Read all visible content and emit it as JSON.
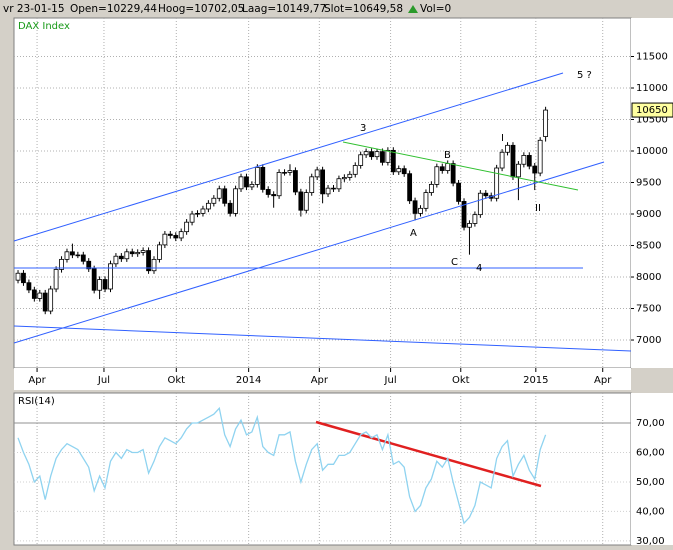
{
  "header": [
    "vr 23-01-15",
    "Open=10229,44",
    "Hoog=10702,05",
    "Laag=10149,77",
    "Slot=10649,58",
    "Vol=0"
  ],
  "chart_data": [
    {
      "type": "candlestick",
      "title": "DAX Index",
      "open": [
        7950,
        8060,
        7910,
        7795,
        7660,
        7745,
        7460,
        7810,
        8120,
        8280,
        8400,
        8350,
        8350,
        8250,
        8130,
        7790,
        7960,
        7810,
        8210,
        8330,
        8290,
        8400,
        8370,
        8390,
        8420,
        8100,
        8280,
        8510,
        8680,
        8660,
        8620,
        8720,
        8870,
        9000,
        9010,
        9080,
        9170,
        9250,
        9400,
        9170,
        9010,
        9400,
        9590,
        9430,
        9470,
        9740,
        9390,
        9310,
        9290,
        9660,
        9660,
        9690,
        9350,
        9060,
        9340,
        9590,
        9700,
        9320,
        9410,
        9400,
        9560,
        9580,
        9630,
        9770,
        9940,
        9990,
        9910,
        9990,
        9820,
        10010,
        9670,
        9720,
        9640,
        9210,
        9010,
        9090,
        9340,
        9470,
        9750,
        9690,
        9800,
        9490,
        9200,
        8790,
        8850,
        8990,
        9330,
        9290,
        9250,
        9730,
        9980,
        10090,
        9590,
        9790,
        9930,
        9760,
        9650,
        10229.44
      ],
      "high": [
        8110,
        8110,
        7960,
        7845,
        7795,
        7795,
        7860,
        8170,
        8330,
        8450,
        8530,
        8400,
        8400,
        8300,
        8180,
        8010,
        8010,
        8260,
        8380,
        8380,
        8450,
        8450,
        8440,
        8470,
        8470,
        8330,
        8560,
        8730,
        8730,
        8710,
        8770,
        8920,
        9050,
        9060,
        9130,
        9220,
        9300,
        9450,
        9450,
        9220,
        9450,
        9640,
        9640,
        9520,
        9790,
        9790,
        9440,
        9360,
        9710,
        9710,
        9790,
        9740,
        9400,
        9390,
        9640,
        9750,
        9750,
        9460,
        9460,
        9610,
        9630,
        9680,
        9820,
        9990,
        10040,
        10040,
        10040,
        10040,
        10060,
        10060,
        9770,
        9770,
        9690,
        9260,
        9140,
        9390,
        9520,
        9800,
        9800,
        9850,
        9850,
        9540,
        9250,
        8900,
        9040,
        9380,
        9380,
        9340,
        9780,
        10030,
        10140,
        10140,
        9840,
        9980,
        9980,
        9810,
        10220,
        10702.05
      ],
      "low": [
        7900,
        7860,
        7745,
        7610,
        7610,
        7410,
        7410,
        7760,
        8070,
        8230,
        8300,
        8300,
        8200,
        8080,
        7740,
        7650,
        7760,
        7760,
        8160,
        8240,
        8240,
        8320,
        8320,
        8340,
        8050,
        8050,
        8230,
        8460,
        8610,
        8570,
        8570,
        8670,
        8820,
        8950,
        8960,
        9030,
        9120,
        9200,
        9120,
        8960,
        8960,
        9350,
        9380,
        9380,
        9420,
        9340,
        9260,
        9100,
        9240,
        9610,
        9610,
        9300,
        8960,
        9010,
        9290,
        9540,
        9170,
        9270,
        9350,
        9350,
        9510,
        9530,
        9580,
        9720,
        9890,
        9860,
        9860,
        9770,
        9770,
        9620,
        9620,
        9590,
        9160,
        8900,
        8960,
        9040,
        9290,
        9420,
        9640,
        9640,
        9440,
        9150,
        8740,
        8355,
        8800,
        8940,
        9240,
        9200,
        9200,
        9680,
        9930,
        9540,
        9220,
        9740,
        9710,
        9380,
        9600,
        10149.77
      ],
      "close": [
        8060,
        7910,
        7795,
        7660,
        7745,
        7460,
        7810,
        8120,
        8280,
        8400,
        8350,
        8350,
        8250,
        8130,
        7790,
        7960,
        7810,
        8210,
        8330,
        8290,
        8400,
        8370,
        8390,
        8420,
        8100,
        8280,
        8510,
        8680,
        8660,
        8620,
        8720,
        8870,
        9000,
        9010,
        9080,
        9170,
        9250,
        9400,
        9170,
        9010,
        9400,
        9590,
        9430,
        9470,
        9740,
        9390,
        9310,
        9290,
        9660,
        9660,
        9690,
        9350,
        9060,
        9340,
        9590,
        9700,
        9320,
        9410,
        9400,
        9560,
        9580,
        9630,
        9770,
        9940,
        9990,
        9910,
        9990,
        9820,
        10010,
        9670,
        9720,
        9640,
        9210,
        9010,
        9090,
        9340,
        9470,
        9750,
        9690,
        9800,
        9490,
        9200,
        8790,
        8850,
        8990,
        9330,
        9290,
        9250,
        9730,
        9980,
        10090,
        9590,
        9790,
        9930,
        9760,
        9650,
        10170,
        10649.58
      ],
      "xlim": [
        -0.74,
        112.7
      ],
      "xticks": [
        {
          "value": 3.5,
          "label": "Apr"
        },
        {
          "value": 15.8,
          "label": "Jul"
        },
        {
          "value": 29.1,
          "label": "Okt"
        },
        {
          "value": 42.4,
          "label": "2014"
        },
        {
          "value": 55.4,
          "label": "Apr"
        },
        {
          "value": 68.5,
          "label": "Jul"
        },
        {
          "value": 81.4,
          "label": "Okt"
        },
        {
          "value": 95.2,
          "label": "2015"
        },
        {
          "value": 107.5,
          "label": "Apr"
        }
      ],
      "ylim": [
        6556,
        12111
      ],
      "yticks": [
        7000,
        7500,
        8000,
        8500,
        9000,
        9500,
        10000,
        10500,
        11000,
        11500
      ],
      "last_price_tag": 10650,
      "annotations": [
        "3",
        "B",
        "A",
        "C",
        "4",
        "5 ?",
        "I",
        "II"
      ],
      "grid": true
    },
    {
      "type": "line",
      "title": "RSI(14)",
      "color": "#8fd3f0",
      "values": [
        65,
        60,
        56,
        50,
        52,
        44,
        52,
        58,
        61,
        63,
        62,
        61,
        58,
        55,
        47,
        52,
        48,
        57,
        60,
        58,
        61,
        60,
        60,
        61,
        53,
        57,
        62,
        65,
        64,
        63,
        65,
        68,
        70,
        70,
        71,
        72,
        73,
        75,
        66,
        62,
        68,
        71,
        66,
        67,
        72,
        62,
        60,
        59,
        66,
        66,
        67,
        57,
        50,
        56,
        61,
        63,
        54,
        56,
        56,
        59,
        59,
        60,
        63,
        66,
        67,
        65,
        66,
        61,
        66,
        56,
        57,
        55,
        45,
        40,
        42,
        48,
        51,
        57,
        55,
        58,
        50,
        43,
        36,
        38,
        42,
        50,
        49,
        48,
        58,
        62,
        64,
        52,
        56,
        59,
        54,
        51,
        61,
        66
      ],
      "ylim": [
        28.6,
        80.2
      ],
      "yticks": [
        {
          "value": 30,
          "label": "30,00"
        },
        {
          "value": 40,
          "label": "40,00"
        },
        {
          "value": 50,
          "label": "50,00"
        },
        {
          "value": 60,
          "label": "60,00"
        },
        {
          "value": 70,
          "label": "70,00"
        }
      ]
    }
  ]
}
